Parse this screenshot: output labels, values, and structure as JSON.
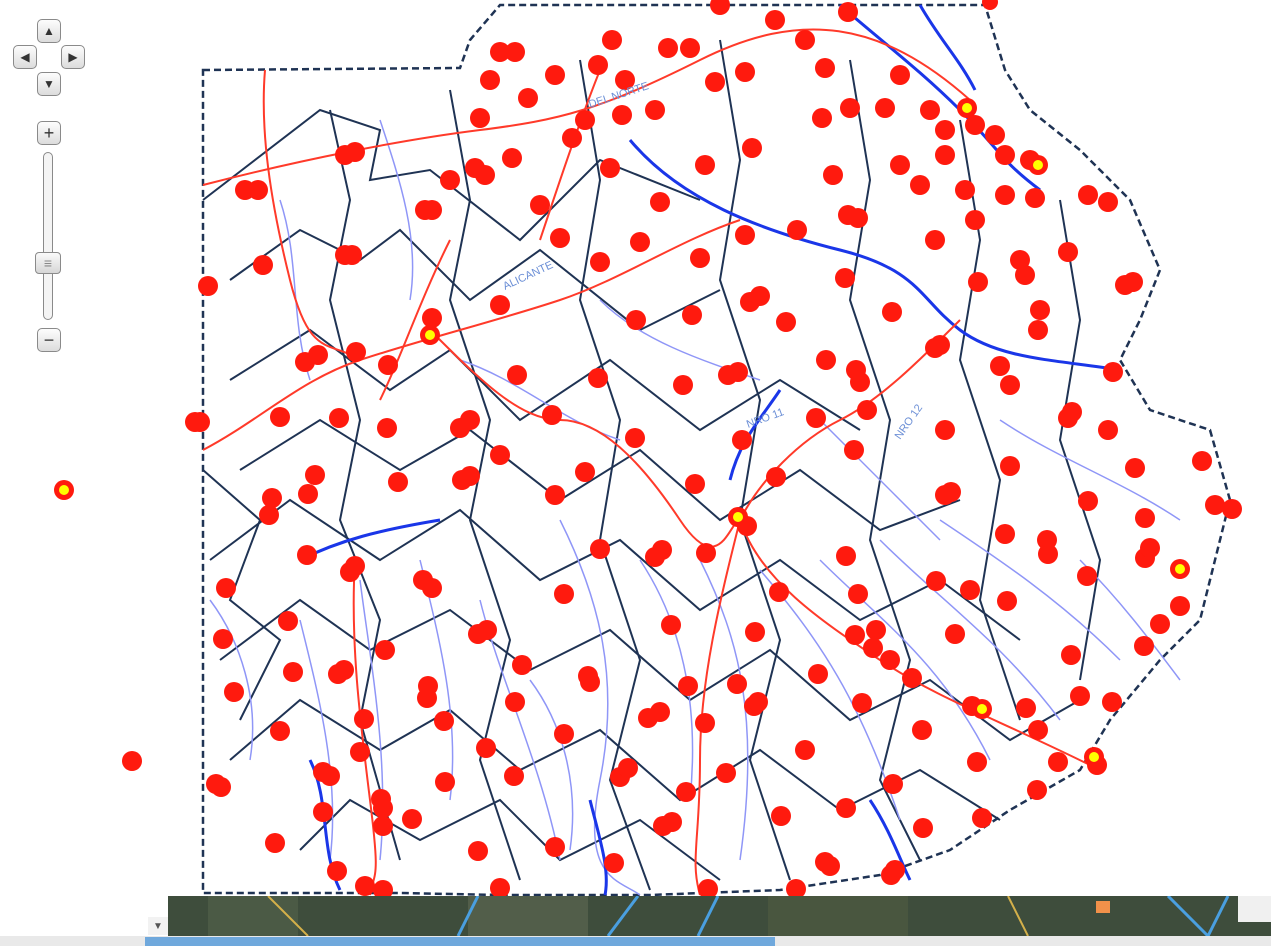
{
  "map": {
    "route_labels": [
      "DEL NORTE",
      "ALICANTE",
      "NRO 11",
      "NRO 12"
    ],
    "colors": {
      "district_border": "#1f3354",
      "road": "#ff3a2a",
      "river_major": "#1a36e8",
      "river_minor": "#8f96f7",
      "marker": "#ff1a0e",
      "marker_highlight": "#ffff00"
    }
  },
  "controls": {
    "pan_up": "▲",
    "pan_left": "◀",
    "pan_right": "▶",
    "pan_down": "▼",
    "zoom_in": "+",
    "zoom_out": "−",
    "zoom_thumb": "≡",
    "scroll_arrow": "▼"
  }
}
